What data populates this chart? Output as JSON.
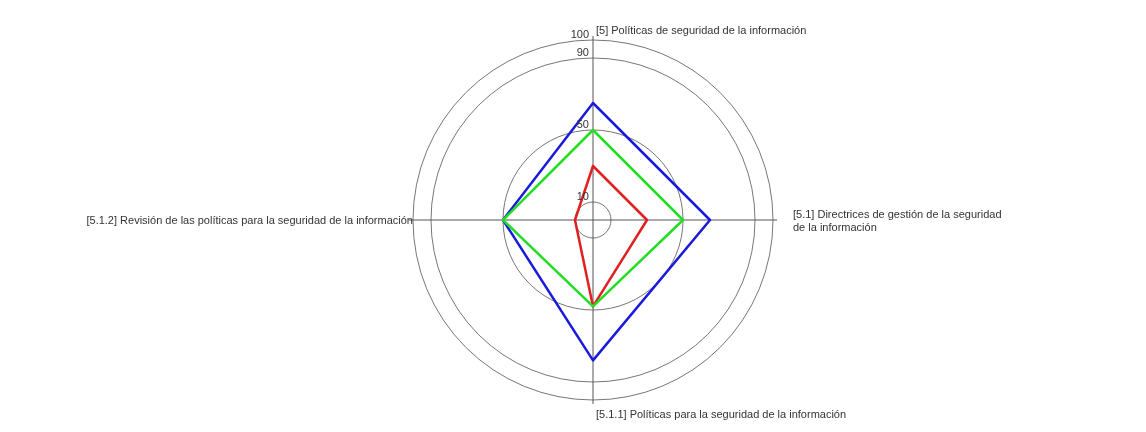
{
  "chart_data": {
    "type": "radar",
    "categories": [
      "[5] Políticas de seguridad de la información",
      "[5.1] Directrices de gestión de la seguridad de la información",
      "[5.1.1] Políticas para la seguridad de la información",
      "[5.1.2] Revisión de las políticas para la seguridad de la información"
    ],
    "series": [
      {
        "color": "#e02020",
        "values": [
          30,
          30,
          48,
          10
        ]
      },
      {
        "color": "#1a1adc",
        "values": [
          65,
          65,
          78,
          50
        ]
      },
      {
        "color": "#22dd22",
        "values": [
          50,
          50,
          48,
          50
        ]
      }
    ],
    "ylim": [
      0,
      100
    ],
    "yticks": [
      10,
      50,
      90,
      100
    ],
    "grid": true,
    "marker": "none",
    "line_style": "solid"
  }
}
